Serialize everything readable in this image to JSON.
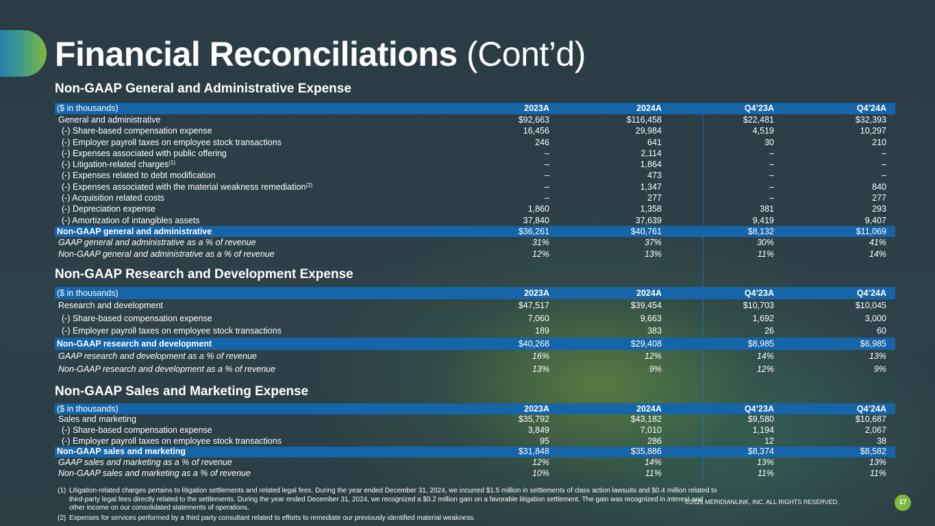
{
  "title": {
    "bold": "Financial Reconciliations",
    "light": " (Cont’d)"
  },
  "columns": [
    "2023A",
    "2024A",
    "Q4’23A",
    "Q4’24A"
  ],
  "unit_label": "($ in thousands)",
  "ga": {
    "title": "Non-GAAP General and Administrative Expense",
    "rows": [
      {
        "label": "General and administrative",
        "vals": [
          "$92,663",
          "$116,458",
          "$22,481",
          "$32,393"
        ]
      },
      {
        "label": "(-) Share-based compensation expense",
        "vals": [
          "16,456",
          "29,984",
          "4,519",
          "10,297"
        ]
      },
      {
        "label": "(-) Employer payroll taxes on employee stock transactions",
        "vals": [
          "246",
          "641",
          "30",
          "210"
        ]
      },
      {
        "label": "(-) Expenses associated with public offering",
        "vals": [
          "–",
          "2,114",
          "–",
          "–"
        ]
      },
      {
        "label": "(-) Litigation-related charges",
        "sup": "(1)",
        "vals": [
          "–",
          "1,864",
          "–",
          "–"
        ]
      },
      {
        "label": "(-) Expenses related to debt modification",
        "vals": [
          "–",
          "473",
          "–",
          "–"
        ]
      },
      {
        "label": "(-) Expenses associated with the material weakness remediation",
        "sup": "(2)",
        "vals": [
          "–",
          "1,347",
          "–",
          "840"
        ]
      },
      {
        "label": "(-) Acquisition related costs",
        "vals": [
          "–",
          "277",
          "–",
          "277"
        ]
      },
      {
        "label": "(-) Depreciation expense",
        "vals": [
          "1,860",
          "1,358",
          "381",
          "293"
        ]
      },
      {
        "label": "(-) Amortization of intangibles assets",
        "vals": [
          "37,840",
          "37,639",
          "9,419",
          "9,407"
        ]
      }
    ],
    "total": {
      "label": "Non-GAAP general and administrative",
      "vals": [
        "$36,261",
        "$40,761",
        "$8,132",
        "$11,069"
      ]
    },
    "pct": [
      {
        "label": "GAAP general and administrative as a % of revenue",
        "vals": [
          "31%",
          "37%",
          "30%",
          "41%"
        ]
      },
      {
        "label": "Non-GAAP general and administrative as a % of revenue",
        "vals": [
          "12%",
          "13%",
          "11%",
          "14%"
        ]
      }
    ]
  },
  "rd": {
    "title": "Non-GAAP Research and Development Expense",
    "rows": [
      {
        "label": "Research and development",
        "vals": [
          "$47,517",
          "$39,454",
          "$10,703",
          "$10,045"
        ]
      },
      {
        "label": "(-) Share-based compensation expense",
        "vals": [
          "7,060",
          "9,663",
          "1,692",
          "3,000"
        ]
      },
      {
        "label": "(-) Employer payroll taxes on employee stock transactions",
        "vals": [
          "189",
          "383",
          "26",
          "60"
        ]
      }
    ],
    "total": {
      "label": "Non-GAAP research and development",
      "vals": [
        "$40,268",
        "$29,408",
        "$8,985",
        "$6,985"
      ]
    },
    "pct": [
      {
        "label": "GAAP research and development as a % of revenue",
        "vals": [
          "16%",
          "12%",
          "14%",
          "13%"
        ]
      },
      {
        "label": "Non-GAAP research and development as a % of revenue",
        "vals": [
          "13%",
          "9%",
          "12%",
          "9%"
        ]
      }
    ]
  },
  "sm": {
    "title": "Non-GAAP Sales and Marketing Expense",
    "rows": [
      {
        "label": "Sales and marketing",
        "vals": [
          "$35,792",
          "$43,182",
          "$9,580",
          "$10,687"
        ]
      },
      {
        "label": "(-) Share-based compensation expense",
        "vals": [
          "3,849",
          "7,010",
          "1,194",
          "2,067"
        ]
      },
      {
        "label": "(-) Employer payroll taxes on employee stock transactions",
        "vals": [
          "95",
          "286",
          "12",
          "38"
        ]
      }
    ],
    "total": {
      "label": "Non-GAAP sales and marketing",
      "vals": [
        "$31,848",
        "$35,886",
        "$8,374",
        "$8,582"
      ]
    },
    "pct": [
      {
        "label": "GAAP sales and marketing as a % of revenue",
        "vals": [
          "12%",
          "14%",
          "13%",
          "13%"
        ]
      },
      {
        "label": "Non-GAAP sales and marketing as a % of revenue",
        "vals": [
          "10%",
          "11%",
          "11%",
          "11%"
        ]
      }
    ]
  },
  "footnotes": [
    {
      "num": "(1)",
      "text": "Litigation-related charges pertains to litigation settlements and related legal fees. During the year ended December 31, 2024, we incurred $1.5 million in settlements of class action lawsuits and $0.4 million related to third-party legal fees directly related to the settlements. During the year ended December 31, 2024, we recognized a $0.2 million gain on a favorable litigation settlement. The gain was recognized in interest and other income on our consolidated statements of operations."
    },
    {
      "num": "(2)",
      "text": "Expenses for services performed by a third party consultant related to efforts to remediate our previously identified material weakness."
    }
  ],
  "copyright": "©2025 MERIDIANLINK, INC. ALL RIGHTS RESERVED.",
  "page_number": "17"
}
